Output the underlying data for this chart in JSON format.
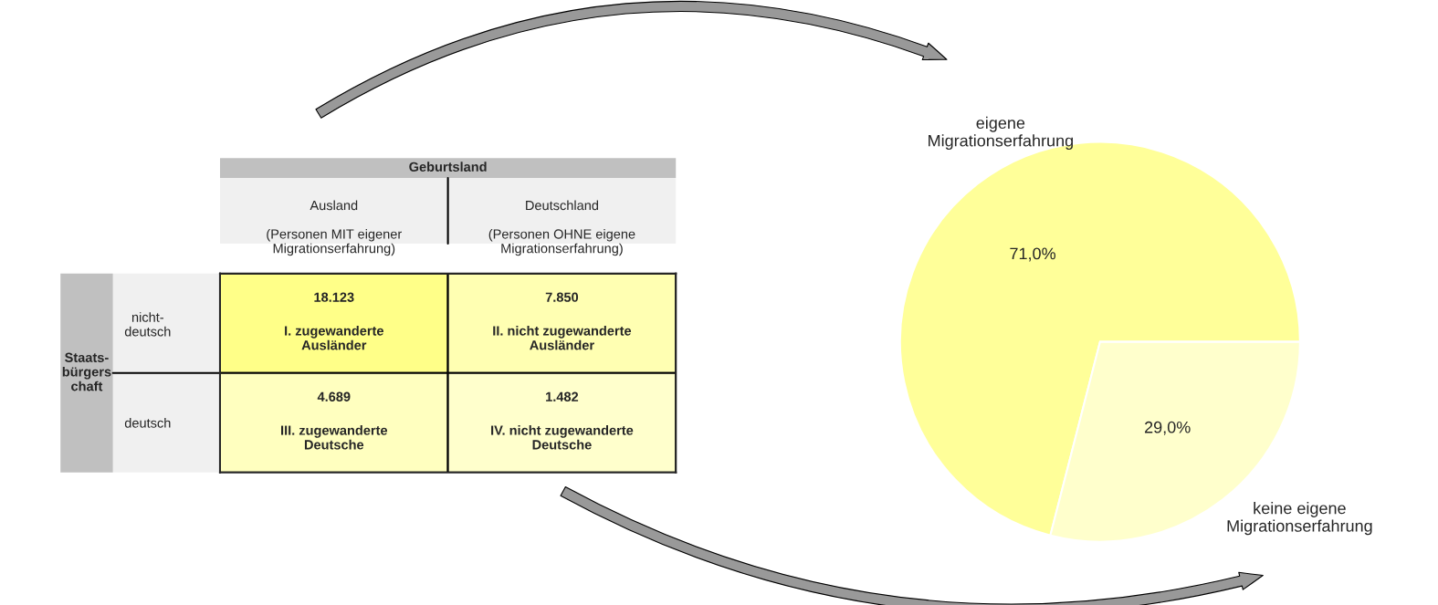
{
  "chart_data": [
    {
      "type": "heatmap",
      "title": "Geburtsland",
      "ylabel": "Staats-\nbürgers\nchaft",
      "categories": [
        "Ausland\n\n(Personen MIT eigener\nMigrationserfahrung)",
        "Deutschland\n\n(Personen OHNE eigene\nMigrationserfahrung)"
      ],
      "y_categories": [
        "nicht-\ndeutsch",
        "deutsch"
      ],
      "cells": [
        [
          18123,
          7850
        ],
        [
          4689,
          1482
        ]
      ],
      "cell_labels": [
        [
          "18.123",
          "7.850"
        ],
        [
          "4.689",
          "1.482"
        ]
      ],
      "annotations": [
        "I. zugewanderte\nAusländer",
        "II. nicht zugewanderte\nAusländer",
        "III. zugewanderte\nDeutsche",
        "IV. nicht zugewanderte\nDeutsche"
      ]
    },
    {
      "type": "pie",
      "categories": [
        "eigene\nMigrationserfahrung",
        "keine eigene\nMigrationserfahrung"
      ],
      "values": [
        71.0,
        29.0
      ],
      "value_labels": [
        "71,0%",
        "29,0%"
      ],
      "colors": [
        "#ffff99",
        "#ffffcc"
      ]
    }
  ]
}
